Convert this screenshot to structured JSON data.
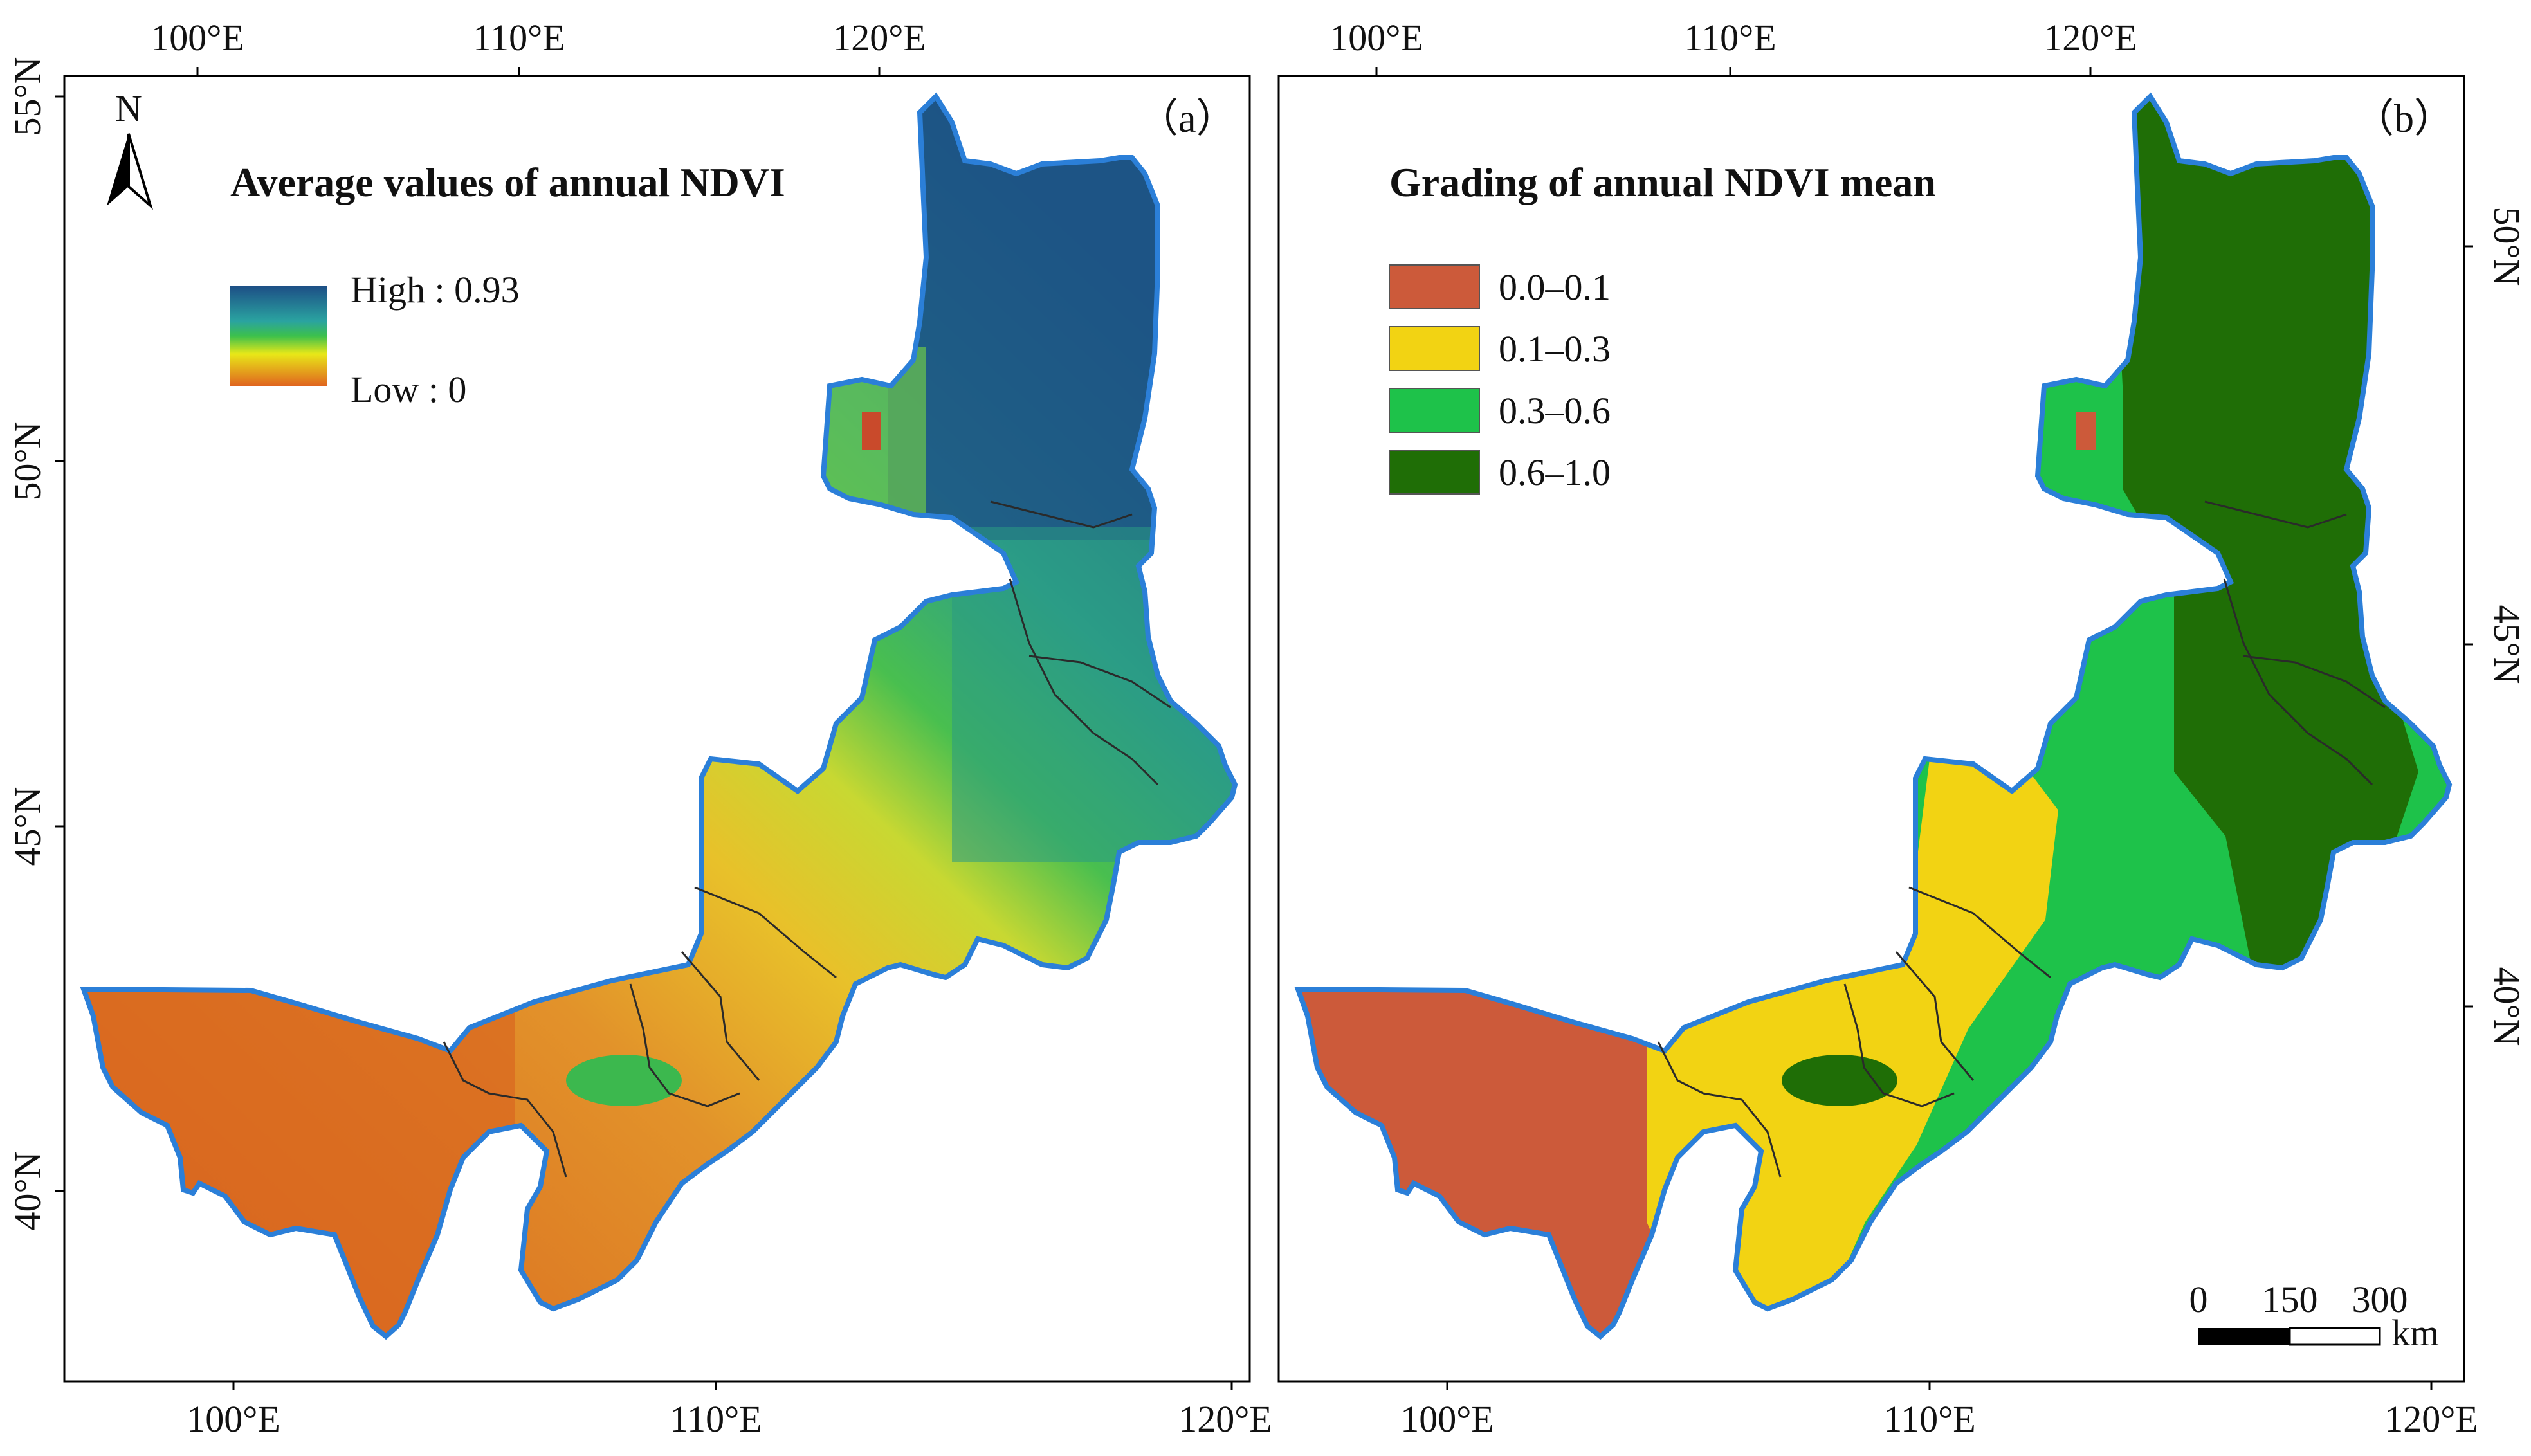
{
  "colors": {
    "region_outline": "#2b7fd8",
    "league_border": "#2a2a2a",
    "frame": "#000000",
    "class_0_0_1": "#cc5a3a",
    "class_0_1_0_3": "#f2d313",
    "class_0_3_0_6": "#1ec24a",
    "class_0_6_1_0": "#1f6e06",
    "grad_high": "#1d4f86",
    "grad_mid": "#3cc04c",
    "grad_yellow": "#e8e818",
    "grad_low": "#e0641f"
  },
  "panel_a": {
    "label": "（a）",
    "title": "Average values of annual NDVI",
    "north_label": "N",
    "legend_high": "High : 0.93",
    "legend_low": "Low : 0",
    "top_ticks": [
      "100°E",
      "110°E",
      "120°E"
    ],
    "bottom_ticks": [
      "100°E",
      "110°E",
      "120°E"
    ],
    "left_ticks": [
      "55°N",
      "50°N",
      "45°N",
      "40°N"
    ]
  },
  "panel_b": {
    "label": "（b）",
    "title": "Grading of annual NDVI mean",
    "legend": [
      {
        "label": "0.0–0.1",
        "color": "#cc5a3a"
      },
      {
        "label": "0.1–0.3",
        "color": "#f2d313"
      },
      {
        "label": "0.3–0.6",
        "color": "#1ec24a"
      },
      {
        "label": "0.6–1.0",
        "color": "#1f6e06"
      }
    ],
    "top_ticks": [
      "100°E",
      "110°E",
      "120°E"
    ],
    "bottom_ticks": [
      "100°E",
      "110°E",
      "120°E"
    ],
    "right_ticks": [
      "50°N",
      "45°N",
      "40°N"
    ],
    "scale_bar": {
      "ticks": [
        "0",
        "150",
        "300"
      ],
      "unit": "km"
    }
  }
}
